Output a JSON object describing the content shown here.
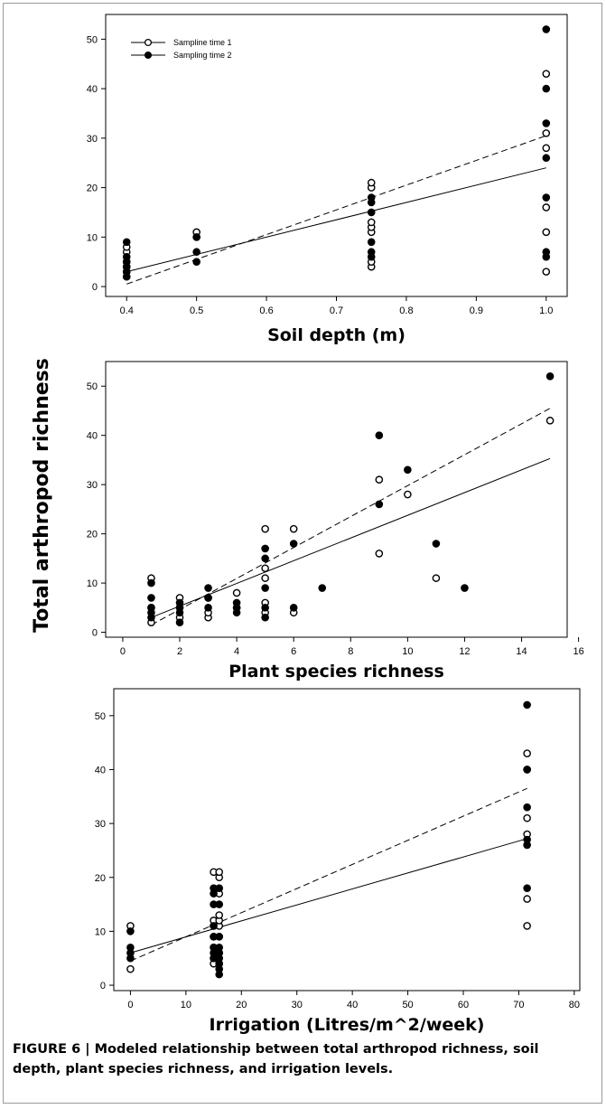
{
  "shared_ylabel": "Total arthropod richness",
  "caption": "FIGURE 6 | Modeled relationship between total arthropod richness, soil depth, plant species richness, and irrigation levels.",
  "legend": {
    "series1": "Sampline time 1",
    "series2": "Sampling time 2"
  },
  "chart_data": [
    {
      "type": "scatter",
      "xlabel": "Soil depth (m)",
      "xlim": [
        0.37,
        1.03
      ],
      "ylim": [
        -2,
        55
      ],
      "xticks": [
        0.4,
        0.5,
        0.6,
        0.7,
        0.8,
        0.9,
        1.0
      ],
      "xtick_labels": [
        "0.4",
        "0.5",
        "0.6",
        "0.7",
        "0.8",
        "0.9",
        "1.0"
      ],
      "yticks": [
        0,
        10,
        20,
        30,
        40,
        50
      ],
      "legend_position": "top-left",
      "series": [
        {
          "name": "Sampline time 1",
          "marker": "open",
          "line": "solid",
          "x": [
            0.4,
            0.4,
            0.4,
            0.4,
            0.4,
            0.4,
            0.5,
            0.5,
            0.75,
            0.75,
            0.75,
            0.75,
            0.75,
            0.75,
            0.75,
            1.0,
            1.0,
            1.0,
            1.0,
            1.0,
            1.0
          ],
          "y": [
            2,
            3,
            4,
            5,
            7,
            8,
            10,
            11,
            4,
            5,
            11,
            12,
            13,
            20,
            21,
            3,
            11,
            16,
            28,
            31,
            43
          ],
          "fit": [
            [
              0.4,
              3
            ],
            [
              1.0,
              24
            ]
          ]
        },
        {
          "name": "Sampling time 2",
          "marker": "filled",
          "line": "dashed",
          "x": [
            0.4,
            0.4,
            0.4,
            0.4,
            0.4,
            0.4,
            0.5,
            0.5,
            0.5,
            0.75,
            0.75,
            0.75,
            0.75,
            0.75,
            0.75,
            1.0,
            1.0,
            1.0,
            1.0,
            1.0,
            1.0,
            1.0
          ],
          "y": [
            2,
            3,
            4,
            5,
            6,
            9,
            5,
            7,
            10,
            6,
            7,
            9,
            15,
            17,
            18,
            6,
            7,
            18,
            26,
            33,
            40,
            52
          ],
          "fit": [
            [
              0.4,
              0.5
            ],
            [
              1.0,
              30.5
            ]
          ]
        }
      ]
    },
    {
      "type": "scatter",
      "xlabel": "Plant species richness",
      "xlim": [
        -0.6,
        15.6
      ],
      "ylim": [
        -1,
        55
      ],
      "xticks": [
        0,
        2,
        4,
        6,
        8,
        10,
        12,
        14,
        16
      ],
      "xtick_labels": [
        "0",
        "2",
        "4",
        "6",
        "8",
        "10",
        "12",
        "14",
        "16"
      ],
      "yticks": [
        0,
        10,
        20,
        30,
        40,
        50
      ],
      "series": [
        {
          "name": "Sampline time 1",
          "marker": "open",
          "line": "solid",
          "x": [
            1,
            1,
            1,
            2,
            2,
            2,
            3,
            3,
            3,
            4,
            4,
            5,
            5,
            5,
            5,
            5,
            6,
            6,
            9,
            9,
            10,
            11,
            15
          ],
          "y": [
            2,
            5,
            11,
            3,
            5,
            7,
            3,
            4,
            7,
            5,
            8,
            4,
            6,
            11,
            13,
            21,
            4,
            21,
            16,
            31,
            28,
            11,
            43
          ],
          "fit": [
            [
              1,
              3
            ],
            [
              15,
              35.3
            ]
          ]
        },
        {
          "name": "Sampling time 2",
          "marker": "filled",
          "line": "dashed",
          "x": [
            1,
            1,
            1,
            1,
            1,
            2,
            2,
            2,
            2,
            3,
            3,
            3,
            4,
            4,
            4,
            5,
            5,
            5,
            5,
            5,
            6,
            6,
            7,
            9,
            9,
            10,
            11,
            12,
            15
          ],
          "y": [
            3,
            4,
            5,
            7,
            10,
            2,
            4,
            5,
            6,
            5,
            7,
            9,
            4,
            5,
            6,
            3,
            5,
            9,
            15,
            17,
            5,
            18,
            9,
            26,
            40,
            33,
            18,
            9,
            52
          ],
          "fit": [
            [
              1,
              1.5
            ],
            [
              15,
              45.5
            ]
          ]
        }
      ]
    },
    {
      "type": "scatter",
      "xlabel": "Irrigation (Litres/m^2/week)",
      "xlim": [
        -3,
        81
      ],
      "ylim": [
        -1,
        55
      ],
      "xticks": [
        0,
        10,
        20,
        30,
        40,
        50,
        60,
        70,
        80
      ],
      "xtick_labels": [
        "0",
        "10",
        "20",
        "30",
        "40",
        "50",
        "60",
        "70",
        "80"
      ],
      "yticks": [
        0,
        10,
        20,
        30,
        40,
        50
      ],
      "series": [
        {
          "name": "Sampline time 1",
          "marker": "open",
          "line": "solid",
          "x": [
            0,
            0,
            15,
            15,
            15,
            15,
            15,
            15,
            15,
            16,
            16,
            16,
            16,
            16,
            16,
            16,
            16,
            16,
            71.5,
            71.5,
            71.5,
            71.5,
            71.5,
            71.5
          ],
          "y": [
            3,
            11,
            4,
            5,
            7,
            9,
            11,
            12,
            21,
            4,
            6,
            9,
            11,
            12,
            13,
            17,
            20,
            21,
            11,
            16,
            28,
            31,
            43,
            40
          ],
          "fit": [
            [
              0,
              6
            ],
            [
              71.5,
              27.2
            ]
          ]
        },
        {
          "name": "Sampling time 2",
          "marker": "filled",
          "line": "dashed",
          "x": [
            0,
            0,
            0,
            0,
            15,
            15,
            15,
            15,
            15,
            15,
            15,
            15,
            16,
            16,
            16,
            16,
            16,
            16,
            16,
            16,
            16,
            71.5,
            71.5,
            71.5,
            71.5,
            71.5,
            71.5
          ],
          "y": [
            5,
            6,
            7,
            10,
            5,
            6,
            7,
            9,
            15,
            17,
            18,
            11,
            2,
            3,
            4,
            5,
            6,
            7,
            9,
            15,
            18,
            18,
            26,
            33,
            40,
            52,
            27
          ],
          "fit": [
            [
              0,
              4.5
            ],
            [
              71.5,
              36.5
            ]
          ]
        }
      ]
    }
  ]
}
